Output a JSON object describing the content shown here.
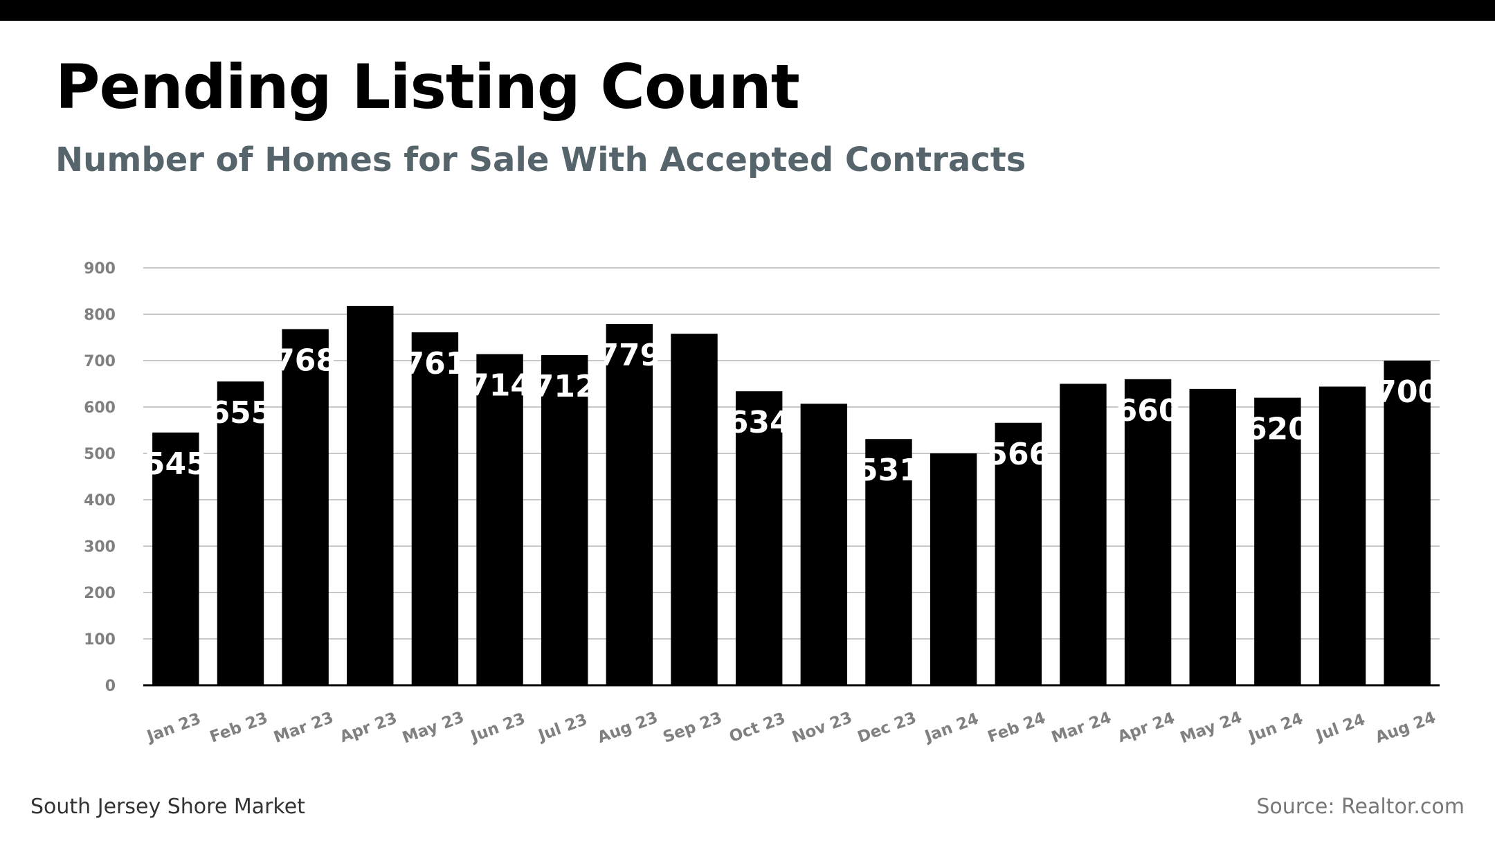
{
  "header": {
    "title": "Pending Listing Count",
    "subtitle": "Number of Homes for Sale With Accepted Contracts"
  },
  "footer": {
    "market": "South Jersey Shore Market",
    "source": "Source: Realtor.com"
  },
  "colors": {
    "bar": "#000000",
    "bar_label": "#ffffff",
    "grid": "#c8c8c8",
    "axis": "#000000",
    "tick_label": "#808080",
    "subtitle": "#56656b"
  },
  "chart_data": {
    "type": "bar",
    "title": "Pending Listing Count",
    "subtitle": "Number of Homes for Sale With Accepted Contracts",
    "xlabel": "",
    "ylabel": "",
    "ylim": [
      0,
      900
    ],
    "yticks": [
      0,
      100,
      200,
      300,
      400,
      500,
      600,
      700,
      800,
      900
    ],
    "grid": true,
    "legend": "none",
    "categories": [
      "Jan 23",
      "Feb 23",
      "Mar 23",
      "Apr 23",
      "May 23",
      "Jun 23",
      "Jul 23",
      "Aug 23",
      "Sep 23",
      "Oct 23",
      "Nov 23",
      "Dec 23",
      "Jan 24",
      "Feb 24",
      "Mar 24",
      "Apr 24",
      "May 24",
      "Jun 24",
      "Jul 24",
      "Aug 24"
    ],
    "values": [
      545,
      655,
      768,
      818,
      761,
      714,
      712,
      779,
      758,
      634,
      607,
      531,
      500,
      566,
      650,
      660,
      639,
      620,
      644,
      700
    ],
    "data_labels": [
      "545",
      "655",
      "768",
      "",
      "761",
      "714",
      "712",
      "779",
      "",
      "634",
      "",
      "531",
      "",
      "566",
      "",
      "660",
      "",
      "620",
      "",
      "700"
    ]
  }
}
